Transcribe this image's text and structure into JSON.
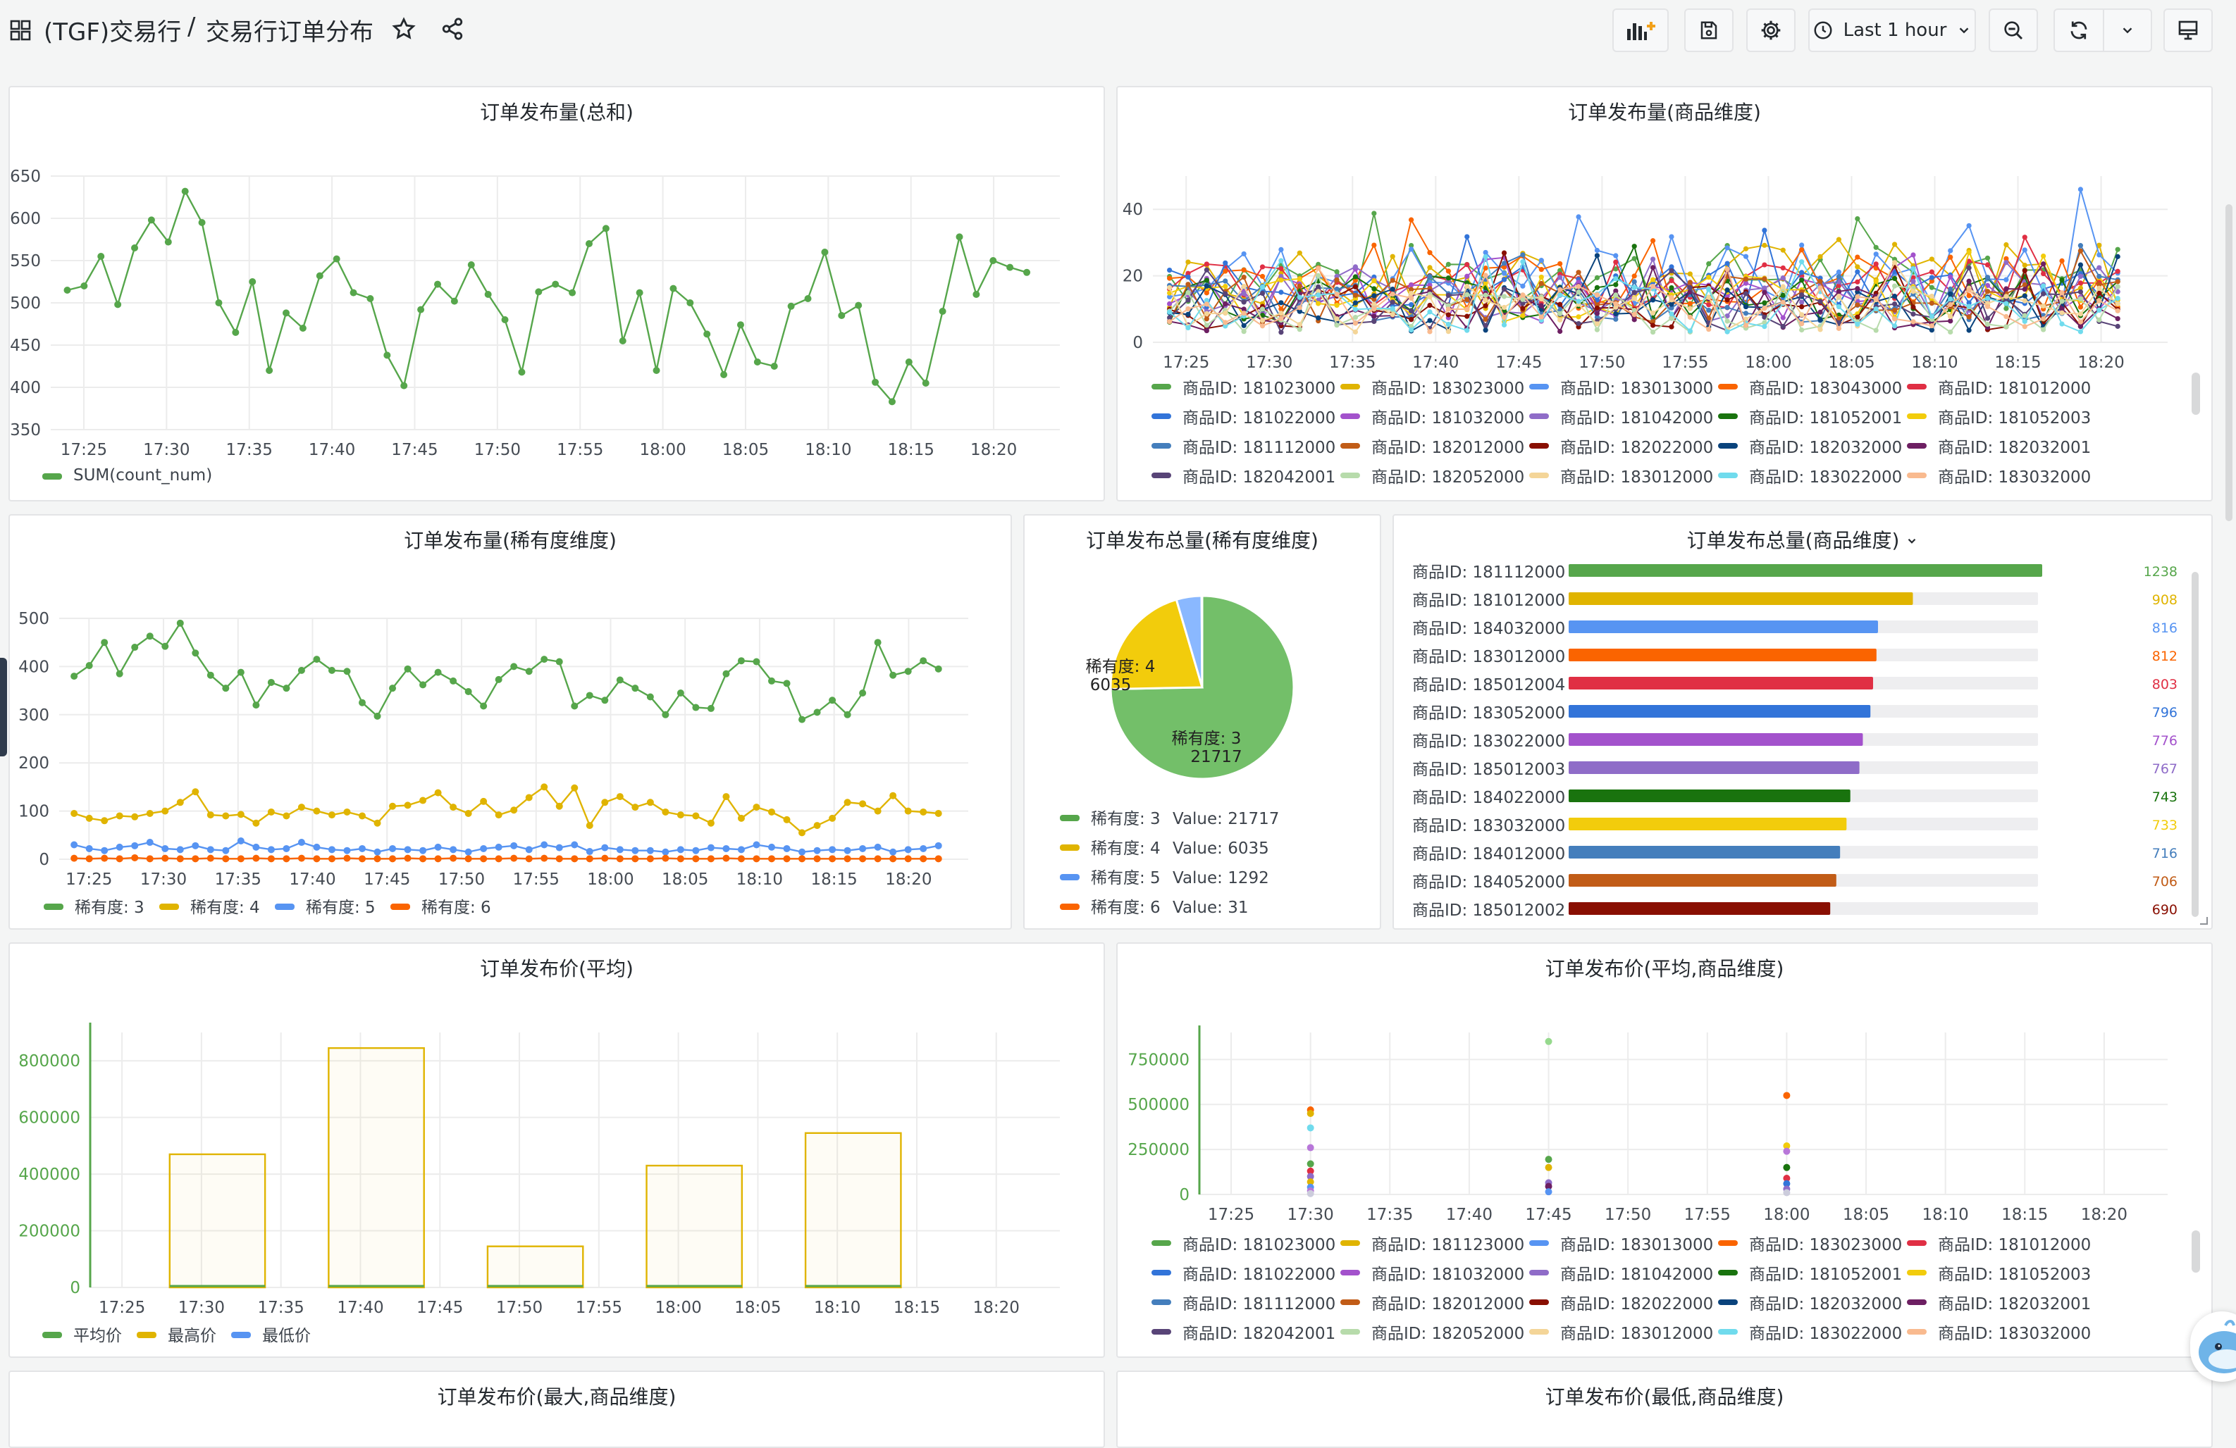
{
  "header": {
    "folder": "(TGF)交易行",
    "sep": "/",
    "title": "交易行订单分布",
    "time_range": "Last 1 hour"
  },
  "colors": {
    "green": "#56a64b",
    "yellow": "#e0b400",
    "blue": "#5794f2",
    "orange": "#fa6400",
    "grid": "#ececec",
    "axis": "#464c54"
  },
  "time_ticks": [
    "17:25",
    "17:30",
    "17:35",
    "17:40",
    "17:45",
    "17:50",
    "17:55",
    "18:00",
    "18:05",
    "18:10",
    "18:15",
    "18:20"
  ],
  "products": [
    {
      "id": "商品ID: 181023000",
      "color": "#56a64b"
    },
    {
      "id": "商品ID: 183023000",
      "color": "#e0b400"
    },
    {
      "id": "商品ID: 183013000",
      "color": "#5794f2"
    },
    {
      "id": "商品ID: 183043000",
      "color": "#fa6400"
    },
    {
      "id": "商品ID: 181012000",
      "color": "#e02f44"
    },
    {
      "id": "商品ID: 181022000",
      "color": "#3274d9"
    },
    {
      "id": "商品ID: 181032000",
      "color": "#a352cc"
    },
    {
      "id": "商品ID: 181042000",
      "color": "#8f6cc8"
    },
    {
      "id": "商品ID: 181052001",
      "color": "#19730e"
    },
    {
      "id": "商品ID: 181052003",
      "color": "#f2cc0c"
    },
    {
      "id": "商品ID: 181112000",
      "color": "#447ebc"
    },
    {
      "id": "商品ID: 182012000",
      "color": "#c15c17"
    },
    {
      "id": "商品ID: 182022000",
      "color": "#890f02"
    },
    {
      "id": "商品ID: 182032000",
      "color": "#0a437c"
    },
    {
      "id": "商品ID: 182032001",
      "color": "#6d1f62"
    },
    {
      "id": "商品ID: 182042001",
      "color": "#584477"
    },
    {
      "id": "商品ID: 182052000",
      "color": "#b7dbab"
    },
    {
      "id": "商品ID: 183012000",
      "color": "#f4d598"
    },
    {
      "id": "商品ID: 183022000",
      "color": "#70dbed"
    },
    {
      "id": "商品ID: 183032000",
      "color": "#f9ba8f"
    }
  ],
  "products_b": [
    {
      "id": "商品ID: 181023000",
      "color": "#56a64b"
    },
    {
      "id": "商品ID: 181123000",
      "color": "#e0b400"
    },
    {
      "id": "商品ID: 183013000",
      "color": "#5794f2"
    },
    {
      "id": "商品ID: 183023000",
      "color": "#fa6400"
    },
    {
      "id": "商品ID: 181012000",
      "color": "#e02f44"
    },
    {
      "id": "商品ID: 181022000",
      "color": "#3274d9"
    },
    {
      "id": "商品ID: 181032000",
      "color": "#a352cc"
    },
    {
      "id": "商品ID: 181042000",
      "color": "#8f6cc8"
    },
    {
      "id": "商品ID: 181052001",
      "color": "#19730e"
    },
    {
      "id": "商品ID: 181052003",
      "color": "#f2cc0c"
    },
    {
      "id": "商品ID: 181112000",
      "color": "#447ebc"
    },
    {
      "id": "商品ID: 182012000",
      "color": "#c15c17"
    },
    {
      "id": "商品ID: 182022000",
      "color": "#890f02"
    },
    {
      "id": "商品ID: 182032000",
      "color": "#0a437c"
    },
    {
      "id": "商品ID: 182032001",
      "color": "#6d1f62"
    },
    {
      "id": "商品ID: 182042001",
      "color": "#584477"
    },
    {
      "id": "商品ID: 182052000",
      "color": "#b7dbab"
    },
    {
      "id": "商品ID: 183012000",
      "color": "#f4d598"
    },
    {
      "id": "商品ID: 183022000",
      "color": "#70dbed"
    },
    {
      "id": "商品ID: 183032000",
      "color": "#f9ba8f"
    }
  ],
  "panels": {
    "p1": {
      "title": "订单发布量(总和)"
    },
    "p2": {
      "title": "订单发布量(商品维度)"
    },
    "p3": {
      "title": "订单发布量(稀有度维度)"
    },
    "p4": {
      "title": "订单发布总量(稀有度维度)"
    },
    "p5": {
      "title": "订单发布总量(商品维度)"
    },
    "p6": {
      "title": "订单发布价(平均)"
    },
    "p7": {
      "title": "订单发布价(平均,商品维度)"
    },
    "p8": {
      "title": "订单发布价(最大,商品维度)"
    },
    "p9": {
      "title": "订单发布价(最低,商品维度)"
    }
  },
  "chart_data": [
    {
      "id": "p1",
      "type": "line",
      "title": "订单发布量(总和)",
      "ylim": [
        350,
        650
      ],
      "yticks": [
        350,
        400,
        450,
        500,
        550,
        600,
        650
      ],
      "x_range": [
        "17:23",
        "18:24"
      ],
      "series": [
        {
          "name": "SUM(count_num)",
          "color": "#56a64b",
          "values": [
            515,
            520,
            555,
            498,
            565,
            598,
            572,
            632,
            595,
            500,
            465,
            525,
            420,
            488,
            470,
            532,
            552,
            512,
            505,
            438,
            402,
            492,
            522,
            502,
            545,
            510,
            480,
            418,
            513,
            522,
            512,
            570,
            588,
            455,
            512,
            420,
            517,
            500,
            463,
            415,
            474,
            430,
            425,
            496,
            505,
            560,
            485,
            497,
            406,
            383,
            430,
            405,
            490,
            578,
            510,
            550,
            542,
            536
          ]
        }
      ]
    },
    {
      "id": "p2",
      "type": "line",
      "title": "订单发布量(商品维度)",
      "ylim": [
        0,
        50
      ],
      "yticks": [
        0,
        20,
        40
      ],
      "x_range": [
        "17:23",
        "18:24"
      ],
      "series_count": 20,
      "peak": {
        "x": "18:18",
        "value": 46
      }
    },
    {
      "id": "p3",
      "type": "line",
      "title": "订单发布量(稀有度维度)",
      "ylim": [
        0,
        500
      ],
      "yticks": [
        0,
        100,
        200,
        300,
        400,
        500
      ],
      "x_range": [
        "17:23",
        "18:24"
      ],
      "series": [
        {
          "name": "稀有度: 3",
          "color": "#56a64b",
          "values": [
            380,
            402,
            450,
            385,
            440,
            463,
            442,
            490,
            428,
            382,
            355,
            388,
            320,
            367,
            355,
            392,
            415,
            392,
            390,
            325,
            297,
            355,
            395,
            362,
            388,
            370,
            348,
            318,
            373,
            400,
            390,
            415,
            410,
            318,
            340,
            330,
            372,
            355,
            337,
            300,
            345,
            315,
            313,
            385,
            412,
            410,
            370,
            365,
            290,
            305,
            330,
            300,
            345,
            450,
            382,
            390,
            412,
            395
          ]
        },
        {
          "name": "稀有度: 4",
          "color": "#e0b400",
          "values": [
            95,
            85,
            80,
            90,
            88,
            95,
            100,
            118,
            140,
            92,
            90,
            93,
            75,
            98,
            90,
            108,
            100,
            92,
            98,
            90,
            75,
            110,
            112,
            122,
            138,
            108,
            95,
            120,
            92,
            102,
            128,
            150,
            110,
            148,
            70,
            118,
            130,
            108,
            118,
            98,
            92,
            90,
            75,
            130,
            85,
            108,
            98,
            82,
            55,
            70,
            85,
            118,
            115,
            100,
            132,
            100,
            98,
            95
          ]
        },
        {
          "name": "稀有度: 5",
          "color": "#5794f2",
          "values": [
            30,
            22,
            18,
            25,
            28,
            35,
            22,
            20,
            28,
            20,
            18,
            38,
            25,
            20,
            22,
            35,
            25,
            20,
            18,
            22,
            15,
            22,
            20,
            18,
            25,
            20,
            15,
            22,
            25,
            28,
            20,
            30,
            24,
            30,
            16,
            24,
            20,
            18,
            18,
            15,
            20,
            18,
            24,
            22,
            20,
            30,
            25,
            22,
            15,
            18,
            20,
            18,
            22,
            25,
            15,
            20,
            22,
            28
          ]
        },
        {
          "name": "稀有度: 6",
          "color": "#fa6400",
          "values": [
            2,
            1,
            2,
            1,
            3,
            1,
            2,
            1,
            1,
            2,
            1,
            1,
            2,
            1,
            1,
            2,
            1,
            1,
            2,
            1,
            1,
            1,
            2,
            1,
            1,
            2,
            1,
            1,
            1,
            2,
            1,
            2,
            1,
            1,
            1,
            2,
            1,
            1,
            1,
            2,
            1,
            1,
            1,
            2,
            1,
            1,
            1,
            1,
            1,
            1,
            1,
            1,
            1,
            1,
            1,
            1,
            1,
            1
          ]
        }
      ]
    },
    {
      "id": "p4",
      "type": "pie",
      "title": "订单发布总量(稀有度维度)",
      "slices": [
        {
          "label": "稀有度: 3",
          "value": 21717,
          "color": "#73bf69"
        },
        {
          "label": "稀有度: 4",
          "value": 6035,
          "color": "#f2cc0c"
        },
        {
          "label": "稀有度: 5",
          "value": 1292,
          "color": "#8ab8ff"
        },
        {
          "label": "稀有度: 6",
          "value": 31,
          "color": "#fa6400"
        }
      ],
      "legend": [
        {
          "label": "稀有度: 3",
          "value_text": "Value: 21717",
          "color": "#56a64b"
        },
        {
          "label": "稀有度: 4",
          "value_text": "Value: 6035",
          "color": "#e0b400"
        },
        {
          "label": "稀有度: 5",
          "value_text": "Value: 1292",
          "color": "#5794f2"
        },
        {
          "label": "稀有度: 6",
          "value_text": "Value: 31",
          "color": "#fa6400"
        }
      ],
      "slice_labels": [
        {
          "name": "稀有度: 3",
          "value": "21717"
        },
        {
          "name": "稀有度: 4",
          "value": "6035"
        }
      ]
    },
    {
      "id": "p5",
      "type": "bar",
      "title": "订单发布总量(商品维度)",
      "max": 1238,
      "bars": [
        {
          "label": "商品ID: 181112000",
          "value": 1238,
          "color": "#56a64b"
        },
        {
          "label": "商品ID: 181012000",
          "value": 908,
          "color": "#e0b400"
        },
        {
          "label": "商品ID: 184032000",
          "value": 816,
          "color": "#5794f2"
        },
        {
          "label": "商品ID: 183012000",
          "value": 812,
          "color": "#fa6400"
        },
        {
          "label": "商品ID: 185012004",
          "value": 803,
          "color": "#e02f44"
        },
        {
          "label": "商品ID: 183052000",
          "value": 796,
          "color": "#3274d9"
        },
        {
          "label": "商品ID: 183022000",
          "value": 776,
          "color": "#a352cc"
        },
        {
          "label": "商品ID: 185012003",
          "value": 767,
          "color": "#8f6cc8"
        },
        {
          "label": "商品ID: 184022000",
          "value": 743,
          "color": "#19730e"
        },
        {
          "label": "商品ID: 183032000",
          "value": 733,
          "color": "#f2cc0c"
        },
        {
          "label": "商品ID: 184012000",
          "value": 716,
          "color": "#447ebc"
        },
        {
          "label": "商品ID: 184052000",
          "value": 706,
          "color": "#c15c17"
        },
        {
          "label": "商品ID: 185012002",
          "value": 690,
          "color": "#890f02"
        }
      ]
    },
    {
      "id": "p6",
      "type": "bar",
      "title": "订单发布价(平均)",
      "ylim": [
        0,
        900000
      ],
      "yticks": [
        0,
        200000,
        400000,
        600000,
        800000
      ],
      "x_range": [
        "17:23",
        "18:24"
      ],
      "bars": [
        {
          "x_start": "17:28",
          "x_end": "17:34",
          "value": 470000
        },
        {
          "x_start": "17:38",
          "x_end": "17:44",
          "value": 845000
        },
        {
          "x_start": "17:48",
          "x_end": "17:54",
          "value": 145000
        },
        {
          "x_start": "17:58",
          "x_end": "18:04",
          "value": 430000
        },
        {
          "x_start": "18:08",
          "x_end": "18:14",
          "value": 545000
        }
      ],
      "legend": [
        {
          "name": "平均价",
          "color": "#56a64b"
        },
        {
          "name": "最高价",
          "color": "#e0b400"
        },
        {
          "name": "最低价",
          "color": "#5794f2"
        }
      ]
    },
    {
      "id": "p7",
      "type": "scatter",
      "title": "订单发布价(平均,商品维度)",
      "ylim": [
        0,
        900000
      ],
      "yticks": [
        0,
        250000,
        500000,
        750000
      ],
      "x_range": [
        "17:23",
        "18:24"
      ],
      "cluster_times": [
        "17:30",
        "17:45",
        "18:00"
      ],
      "points": [
        {
          "t": "17:30",
          "v": 470000,
          "c": "#fa6400"
        },
        {
          "t": "17:30",
          "v": 450000,
          "c": "#e0b400"
        },
        {
          "t": "17:30",
          "v": 370000,
          "c": "#70dbed"
        },
        {
          "t": "17:30",
          "v": 260000,
          "c": "#b877d9"
        },
        {
          "t": "17:30",
          "v": 170000,
          "c": "#56a64b"
        },
        {
          "t": "17:30",
          "v": 130000,
          "c": "#e02f44"
        },
        {
          "t": "17:30",
          "v": 100000,
          "c": "#8f6cc8"
        },
        {
          "t": "17:30",
          "v": 70000,
          "c": "#e0b400"
        },
        {
          "t": "17:30",
          "v": 40000,
          "c": "#5794f2"
        },
        {
          "t": "17:30",
          "v": 20000,
          "c": "#b877d9"
        },
        {
          "t": "17:30",
          "v": 5000,
          "c": "#ccccdc"
        },
        {
          "t": "17:45",
          "v": 850000,
          "c": "#96d98d"
        },
        {
          "t": "17:45",
          "v": 195000,
          "c": "#56a64b"
        },
        {
          "t": "17:45",
          "v": 150000,
          "c": "#e0b400"
        },
        {
          "t": "17:45",
          "v": 65000,
          "c": "#8f6cc8"
        },
        {
          "t": "17:45",
          "v": 45000,
          "c": "#6d1f62"
        },
        {
          "t": "17:45",
          "v": 15000,
          "c": "#5794f2"
        },
        {
          "t": "18:00",
          "v": 550000,
          "c": "#fa6400"
        },
        {
          "t": "18:00",
          "v": 270000,
          "c": "#f2cc0c"
        },
        {
          "t": "18:00",
          "v": 240000,
          "c": "#b877d9"
        },
        {
          "t": "18:00",
          "v": 150000,
          "c": "#19730e"
        },
        {
          "t": "18:00",
          "v": 90000,
          "c": "#e02f44"
        },
        {
          "t": "18:00",
          "v": 60000,
          "c": "#3274d9"
        },
        {
          "t": "18:00",
          "v": 30000,
          "c": "#8f6cc8"
        },
        {
          "t": "18:00",
          "v": 10000,
          "c": "#ccccdc"
        }
      ]
    }
  ]
}
